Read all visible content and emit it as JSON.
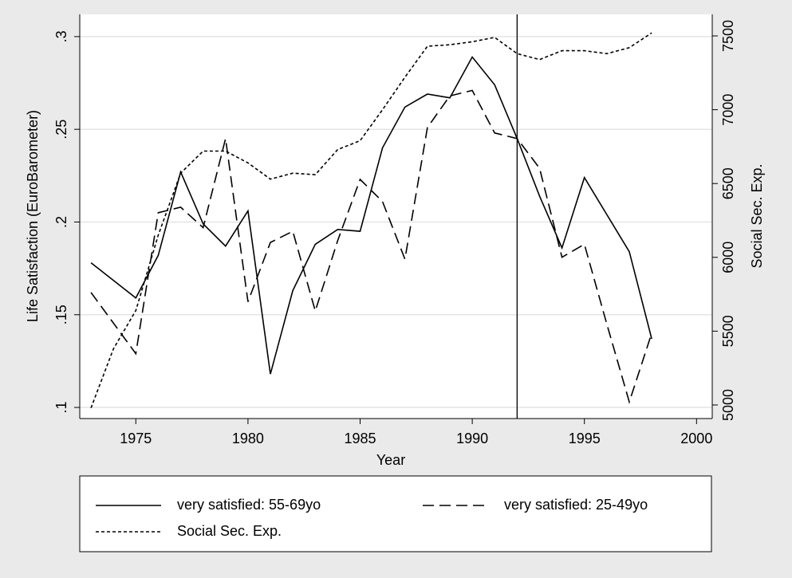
{
  "chart_data": {
    "type": "line",
    "x_label": "Year",
    "y_label": "Life Satisfaction (EuroBarometer)",
    "y2_label": "Social Sec. Exp.",
    "xlim": [
      1972.5,
      2000.7
    ],
    "xticks": [
      1975,
      1980,
      1985,
      1990,
      1995,
      2000
    ],
    "ylim": [
      0.094,
      0.312
    ],
    "yticks": [
      {
        "value": 0.1,
        "label": ".1"
      },
      {
        "value": 0.15,
        "label": ".15"
      },
      {
        "value": 0.2,
        "label": ".2"
      },
      {
        "value": 0.25,
        "label": ".25"
      },
      {
        "value": 0.3,
        "label": ".3"
      }
    ],
    "y2lim": [
      4908,
      7646
    ],
    "y2ticks": [
      5000,
      5500,
      6000,
      6500,
      7000,
      7500
    ],
    "grid": true,
    "xline": 1992,
    "series": [
      {
        "name": "very satisfied: 55-69yo",
        "color": "#000000",
        "dash": "solid",
        "x": [
          1973,
          1975,
          1976,
          1977,
          1978,
          1979,
          1980,
          1981,
          1982,
          1983,
          1984,
          1985,
          1986,
          1987,
          1988,
          1989,
          1990,
          1991,
          1992,
          1993,
          1994,
          1995,
          1997,
          1998
        ],
        "values": [
          0.178,
          0.159,
          0.182,
          0.227,
          0.199,
          0.187,
          0.206,
          0.118,
          0.163,
          0.188,
          0.196,
          0.195,
          0.24,
          0.262,
          0.269,
          0.267,
          0.289,
          0.274,
          0.245,
          0.214,
          0.186,
          0.224,
          0.184,
          0.137
        ]
      },
      {
        "name": "very satisfied: 25-49yo",
        "color": "#000000",
        "dash": "dashed",
        "x": [
          1973,
          1975,
          1976,
          1977,
          1978,
          1979,
          1980,
          1981,
          1982,
          1983,
          1984,
          1985,
          1986,
          1987,
          1988,
          1989,
          1990,
          1991,
          1992,
          1993,
          1994,
          1995,
          1996,
          1997,
          1998
        ],
        "values": [
          0.162,
          0.129,
          0.205,
          0.208,
          0.197,
          0.245,
          0.157,
          0.189,
          0.195,
          0.152,
          0.19,
          0.223,
          0.211,
          0.18,
          0.251,
          0.268,
          0.271,
          0.248,
          0.245,
          0.229,
          0.181,
          0.188,
          0.145,
          0.103,
          0.14
        ]
      },
      {
        "name": "Social Sec. Exp.",
        "color": "#000000",
        "dash": "dotted",
        "axis": "y2",
        "x": [
          1973,
          1974,
          1975,
          1976,
          1977,
          1978,
          1979,
          1980,
          1981,
          1982,
          1983,
          1984,
          1985,
          1986,
          1987,
          1988,
          1989,
          1990,
          1991,
          1992,
          1993,
          1994,
          1995,
          1996,
          1997,
          1998
        ],
        "values": [
          4980,
          5380,
          5640,
          6150,
          6570,
          6720,
          6720,
          6640,
          6530,
          6570,
          6560,
          6730,
          6790,
          7000,
          7220,
          7430,
          7440,
          7460,
          7490,
          7380,
          7340,
          7400,
          7400,
          7380,
          7420,
          7520
        ]
      }
    ]
  }
}
